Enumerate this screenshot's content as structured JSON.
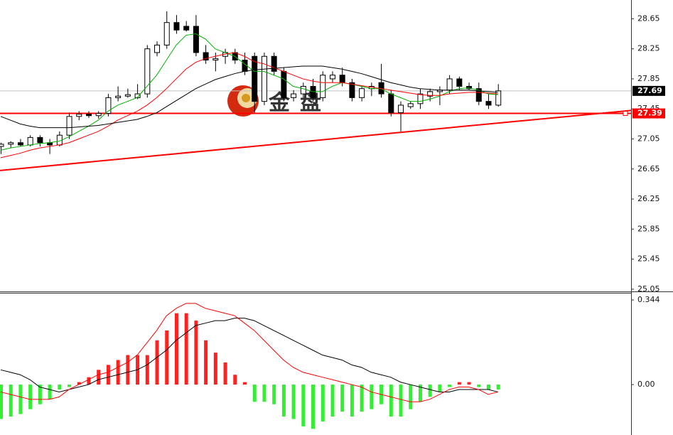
{
  "chart_data": [
    {
      "type": "candlestick",
      "watermark": "金盘",
      "categories": [
        null,
        null,
        null,
        null,
        null,
        null,
        null,
        null,
        null,
        null,
        null,
        null,
        null,
        null,
        null,
        null,
        null,
        null,
        null,
        null,
        null,
        null,
        null,
        null,
        null,
        null,
        null,
        null,
        null,
        null,
        null,
        null,
        null,
        null,
        null,
        null,
        null,
        null,
        null,
        null,
        null,
        null,
        null,
        null,
        null,
        null,
        null,
        null,
        null,
        null,
        null,
        null
      ],
      "open": [
        26.95,
        26.98,
        27.0,
        26.97,
        27.07,
        27.0,
        26.97,
        27.1,
        27.35,
        27.38,
        27.36,
        27.39,
        27.6,
        27.62,
        27.6,
        27.65,
        28.2,
        28.3,
        28.6,
        28.55,
        28.55,
        28.2,
        28.1,
        28.15,
        28.2,
        28.1,
        28.15,
        27.55,
        28.15,
        27.95,
        27.6,
        27.65,
        27.75,
        27.6,
        27.85,
        27.9,
        27.8,
        27.6,
        27.72,
        27.8,
        27.65,
        27.4,
        27.48,
        27.52,
        27.62,
        27.68,
        27.7,
        27.85,
        27.75,
        27.72,
        27.55,
        27.5
      ],
      "high": [
        27.0,
        27.02,
        27.05,
        27.1,
        27.1,
        27.05,
        27.15,
        27.4,
        27.42,
        27.42,
        27.42,
        27.65,
        27.75,
        27.72,
        27.78,
        28.3,
        28.35,
        28.75,
        28.7,
        28.62,
        28.7,
        28.3,
        28.2,
        28.25,
        28.25,
        28.2,
        28.2,
        28.2,
        28.2,
        28.0,
        27.7,
        27.8,
        27.85,
        27.95,
        27.95,
        28.0,
        27.85,
        27.75,
        27.8,
        28.05,
        27.7,
        27.55,
        27.55,
        27.72,
        27.72,
        27.75,
        27.9,
        27.88,
        27.8,
        27.8,
        27.65,
        27.78
      ],
      "low": [
        26.85,
        26.93,
        26.95,
        26.95,
        26.95,
        26.85,
        26.95,
        27.05,
        27.3,
        27.33,
        27.32,
        27.35,
        27.55,
        27.6,
        27.58,
        27.6,
        28.15,
        28.25,
        28.45,
        28.48,
        28.15,
        28.05,
        27.95,
        28.05,
        28.05,
        27.9,
        27.4,
        27.5,
        27.9,
        27.55,
        27.55,
        27.6,
        27.55,
        27.55,
        27.8,
        27.75,
        27.55,
        27.55,
        27.62,
        27.6,
        27.35,
        27.15,
        27.45,
        27.45,
        27.55,
        27.5,
        27.65,
        27.7,
        27.7,
        27.5,
        27.45,
        27.48
      ],
      "close": [
        26.98,
        27.0,
        26.97,
        27.07,
        27.0,
        26.97,
        27.1,
        27.35,
        27.38,
        27.36,
        27.39,
        27.6,
        27.62,
        27.64,
        27.65,
        28.25,
        28.3,
        28.6,
        28.5,
        28.5,
        28.2,
        28.1,
        28.12,
        28.2,
        28.1,
        27.95,
        27.55,
        28.15,
        27.95,
        27.6,
        27.65,
        27.75,
        27.6,
        27.9,
        27.9,
        27.8,
        27.6,
        27.72,
        27.75,
        27.65,
        27.4,
        27.5,
        27.52,
        27.65,
        27.68,
        27.7,
        27.85,
        27.75,
        27.72,
        27.55,
        27.5,
        27.69
      ],
      "up_color": "#ffffff",
      "down_color": "#000000",
      "overlays": [
        {
          "color": "#00b000",
          "values": [
            26.9,
            26.93,
            26.95,
            26.97,
            26.99,
            27.0,
            27.02,
            27.08,
            27.15,
            27.22,
            27.3,
            27.42,
            27.5,
            27.55,
            27.6,
            27.75,
            27.9,
            28.1,
            28.3,
            28.43,
            28.45,
            28.38,
            28.25,
            28.2,
            28.15,
            28.05,
            27.95,
            27.95,
            27.9,
            27.85,
            27.75,
            27.72,
            27.68,
            27.68,
            27.75,
            27.8,
            27.78,
            27.75,
            27.72,
            27.72,
            27.65,
            27.6,
            27.55,
            27.55,
            27.58,
            27.62,
            27.68,
            27.72,
            27.73,
            27.7,
            27.65,
            27.64
          ]
        },
        {
          "color": "#ff0000",
          "values": [
            26.8,
            26.83,
            26.86,
            26.9,
            26.93,
            26.95,
            26.97,
            27.0,
            27.05,
            27.1,
            27.15,
            27.22,
            27.3,
            27.36,
            27.42,
            27.5,
            27.6,
            27.72,
            27.85,
            27.98,
            28.07,
            28.12,
            28.15,
            28.18,
            28.2,
            28.15,
            28.08,
            28.05,
            28.0,
            27.95,
            27.9,
            27.85,
            27.82,
            27.8,
            27.8,
            27.8,
            27.78,
            27.76,
            27.74,
            27.72,
            27.7,
            27.68,
            27.66,
            27.64,
            27.63,
            27.63,
            27.65,
            27.66,
            27.67,
            27.67,
            27.66,
            27.65
          ]
        },
        {
          "color": "#000000",
          "values": [
            27.35,
            27.3,
            27.25,
            27.22,
            27.2,
            27.2,
            27.2,
            27.2,
            27.21,
            27.22,
            27.23,
            27.25,
            27.27,
            27.29,
            27.31,
            27.35,
            27.4,
            27.48,
            27.56,
            27.64,
            27.72,
            27.78,
            27.84,
            27.88,
            27.92,
            27.95,
            27.97,
            27.98,
            27.99,
            28.0,
            28.01,
            28.02,
            28.02,
            28.02,
            28.0,
            27.98,
            27.95,
            27.92,
            27.88,
            27.84,
            27.8,
            27.77,
            27.74,
            27.72,
            27.71,
            27.7,
            27.7,
            27.7,
            27.7,
            27.69,
            27.68,
            27.67
          ]
        }
      ],
      "trendline": [
        26.63,
        27.43
      ],
      "trendline_color": "#ff0000",
      "hline": 27.39,
      "hline_color": "#ff0000",
      "price_line": 27.69,
      "ylim": [
        25.02,
        28.9
      ],
      "yticks": [
        28.65,
        28.25,
        27.85,
        27.45,
        27.05,
        26.65,
        26.25,
        25.85,
        25.45,
        25.05
      ]
    },
    {
      "type": "macd",
      "values": [
        -0.14,
        -0.13,
        -0.12,
        -0.1,
        -0.08,
        -0.06,
        -0.02,
        -0.01,
        0.01,
        0.03,
        0.06,
        0.08,
        0.1,
        0.12,
        0.12,
        0.12,
        0.18,
        0.22,
        0.29,
        0.29,
        0.26,
        0.18,
        0.13,
        0.09,
        0.04,
        0.01,
        -0.07,
        -0.07,
        -0.08,
        -0.13,
        -0.14,
        -0.17,
        -0.18,
        -0.15,
        -0.13,
        -0.11,
        -0.13,
        -0.11,
        -0.1,
        -0.08,
        -0.13,
        -0.13,
        -0.1,
        -0.07,
        -0.05,
        -0.03,
        -0.01,
        0.01,
        0.01,
        -0.01,
        -0.02,
        -0.02
      ],
      "pos_color": "#ff2020",
      "neg_color": "#33ee33",
      "lines": [
        {
          "color": "#000000",
          "values": [
            0.06,
            0.05,
            0.04,
            0.02,
            -0.01,
            -0.02,
            -0.03,
            -0.02,
            -0.01,
            0,
            0.02,
            0.03,
            0.04,
            0.05,
            0.06,
            0.08,
            0.11,
            0.14,
            0.18,
            0.21,
            0.24,
            0.25,
            0.26,
            0.26,
            0.27,
            0.27,
            0.26,
            0.24,
            0.22,
            0.2,
            0.18,
            0.16,
            0.14,
            0.12,
            0.11,
            0.1,
            0.08,
            0.07,
            0.05,
            0.04,
            0.03,
            0.01,
            0,
            -0.01,
            -0.02,
            -0.03,
            -0.03,
            -0.02,
            -0.02,
            -0.02,
            -0.02,
            -0.03
          ]
        },
        {
          "color": "#ff0000",
          "values": [
            -0.03,
            -0.04,
            -0.05,
            -0.06,
            -0.06,
            -0.06,
            -0.05,
            -0.02,
            0,
            0.02,
            0.04,
            0.05,
            0.07,
            0.09,
            0.12,
            0.17,
            0.22,
            0.28,
            0.31,
            0.33,
            0.33,
            0.31,
            0.3,
            0.29,
            0.28,
            0.25,
            0.22,
            0.18,
            0.14,
            0.1,
            0.07,
            0.05,
            0.04,
            0.03,
            0.02,
            0.01,
            0,
            -0.01,
            -0.03,
            -0.04,
            -0.05,
            -0.06,
            -0.07,
            -0.07,
            -0.06,
            -0.04,
            -0.02,
            -0.01,
            -0.01,
            -0.02,
            -0.04,
            -0.03
          ]
        }
      ],
      "ylim": [
        -0.205,
        0.373
      ],
      "yticks": [
        0.344,
        {
          "value": 0,
          "label": "0.00"
        }
      ]
    }
  ]
}
